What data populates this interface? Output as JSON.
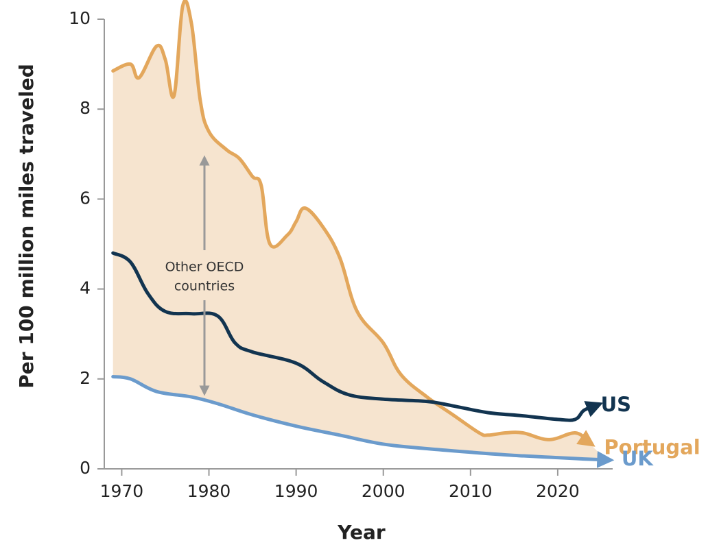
{
  "chart_data": {
    "type": "line",
    "ylabel": "Per 100 million miles traveled",
    "xlabel": "Year",
    "xlim": [
      1968,
      2026.3
    ],
    "ylim": [
      0,
      10
    ],
    "xticks": [
      1970,
      1980,
      1990,
      2000,
      2010,
      2020
    ],
    "yticks": [
      0,
      2,
      4,
      6,
      8,
      10
    ],
    "band_color": "#f6e4cf",
    "annotation": [
      "Other OECD",
      "countries"
    ],
    "series": [
      {
        "name": "Portugal",
        "color": "#e3a75c",
        "x": [
          1969,
          1971,
          1972,
          1974,
          1975,
          1976,
          1977,
          1978,
          1979,
          1980,
          1982,
          1983.5,
          1985,
          1986,
          1987,
          1989,
          1990,
          1991,
          1993,
          1995,
          1997,
          2000,
          2002,
          2005,
          2008,
          2011,
          2012,
          2014,
          2016,
          2019,
          2022,
          2023.5
        ],
        "values": [
          8.85,
          9.0,
          8.7,
          9.4,
          9.1,
          8.3,
          10.3,
          9.9,
          8.2,
          7.5,
          7.1,
          6.9,
          6.5,
          6.3,
          5.0,
          5.2,
          5.5,
          5.8,
          5.4,
          4.7,
          3.5,
          2.8,
          2.1,
          1.6,
          1.2,
          0.8,
          0.75,
          0.8,
          0.8,
          0.65,
          0.8,
          0.6
        ]
      },
      {
        "name": "US",
        "color": "#123450",
        "x": [
          1969,
          1971,
          1973,
          1975,
          1978,
          1981,
          1983,
          1985,
          1990,
          1993,
          1996,
          2000,
          2005,
          2008,
          2012,
          2016,
          2020,
          2022,
          2023,
          2024.3
        ],
        "values": [
          4.8,
          4.6,
          3.9,
          3.5,
          3.45,
          3.4,
          2.8,
          2.6,
          2.35,
          1.95,
          1.65,
          1.55,
          1.5,
          1.4,
          1.25,
          1.18,
          1.1,
          1.1,
          1.3,
          1.4
        ]
      },
      {
        "name": "UK",
        "color": "#6b9bcc",
        "x": [
          1969,
          1971,
          1974,
          1978,
          1981,
          1985,
          1990,
          1995,
          2000,
          2005,
          2010,
          2015,
          2020,
          2023,
          2025.5
        ],
        "values": [
          2.05,
          2.0,
          1.72,
          1.6,
          1.45,
          1.2,
          0.95,
          0.75,
          0.55,
          0.45,
          0.37,
          0.3,
          0.25,
          0.22,
          0.2
        ]
      }
    ]
  }
}
